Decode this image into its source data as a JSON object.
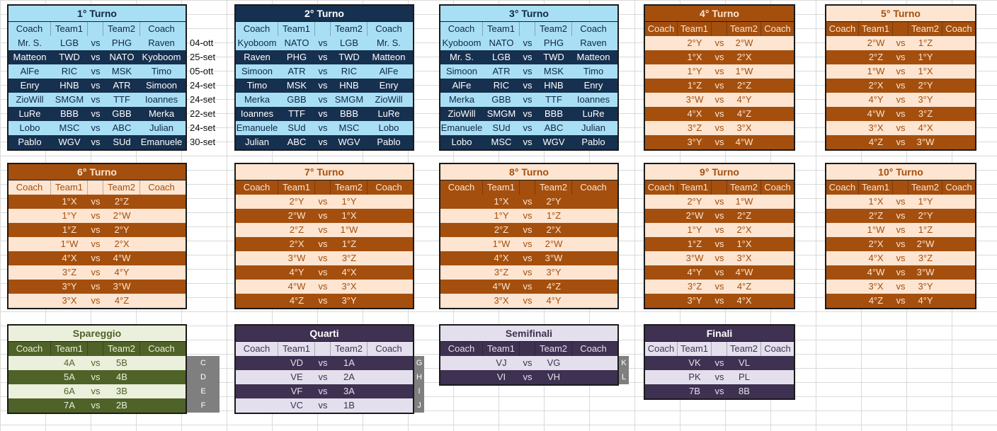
{
  "headers": {
    "coach": "Coach",
    "team1": "Team1",
    "team2": "Team2",
    "vs": "vs"
  },
  "turno1": {
    "title": "1° Turno",
    "rows": [
      [
        "Mr. S.",
        "LGB",
        "PHG",
        "Raven"
      ],
      [
        "Matteon",
        "TWD",
        "NATO",
        "Kyoboom"
      ],
      [
        "AlFe",
        "RIC",
        "MSK",
        "Timo"
      ],
      [
        "Enry",
        "HNB",
        "ATR",
        "Simoon"
      ],
      [
        "ZioWill",
        "SMGM",
        "TTF",
        "Ioannes"
      ],
      [
        "LuRe",
        "BBB",
        "GBB",
        "Merka"
      ],
      [
        "Lobo",
        "MSC",
        "ABC",
        "Julian"
      ],
      [
        "Pablo",
        "WGV",
        "SUd",
        "Emanuele"
      ]
    ],
    "dates": [
      "04-ott",
      "25-set",
      "05-ott",
      "24-set",
      "24-set",
      "22-set",
      "24-set",
      "30-set"
    ]
  },
  "turno2": {
    "title": "2° Turno",
    "rows": [
      [
        "Kyoboom",
        "NATO",
        "LGB",
        "Mr. S."
      ],
      [
        "Raven",
        "PHG",
        "TWD",
        "Matteon"
      ],
      [
        "Simoon",
        "ATR",
        "RIC",
        "AlFe"
      ],
      [
        "Timo",
        "MSK",
        "HNB",
        "Enry"
      ],
      [
        "Merka",
        "GBB",
        "SMGM",
        "ZioWill"
      ],
      [
        "Ioannes",
        "TTF",
        "BBB",
        "LuRe"
      ],
      [
        "Emanuele",
        "SUd",
        "MSC",
        "Lobo"
      ],
      [
        "Julian",
        "ABC",
        "WGV",
        "Pablo"
      ]
    ]
  },
  "turno3": {
    "title": "3° Turno",
    "rows": [
      [
        "Kyoboom",
        "NATO",
        "PHG",
        "Raven"
      ],
      [
        "Mr. S.",
        "LGB",
        "TWD",
        "Matteon"
      ],
      [
        "Simoon",
        "ATR",
        "MSK",
        "Timo"
      ],
      [
        "AlFe",
        "RIC",
        "HNB",
        "Enry"
      ],
      [
        "Merka",
        "GBB",
        "TTF",
        "Ioannes"
      ],
      [
        "ZioWill",
        "SMGM",
        "BBB",
        "LuRe"
      ],
      [
        "Emanuele",
        "SUd",
        "ABC",
        "Julian"
      ],
      [
        "Lobo",
        "MSC",
        "WGV",
        "Pablo"
      ]
    ]
  },
  "turno4": {
    "title": "4° Turno",
    "rows": [
      [
        "",
        "2°Y",
        "2°W",
        ""
      ],
      [
        "",
        "1°X",
        "2°X",
        ""
      ],
      [
        "",
        "1°Y",
        "1°W",
        ""
      ],
      [
        "",
        "1°Z",
        "2°Z",
        ""
      ],
      [
        "",
        "3°W",
        "4°Y",
        ""
      ],
      [
        "",
        "4°X",
        "4°Z",
        ""
      ],
      [
        "",
        "3°Z",
        "3°X",
        ""
      ],
      [
        "",
        "3°Y",
        "4°W",
        ""
      ]
    ]
  },
  "turno5": {
    "title": "5° Turno",
    "rows": [
      [
        "",
        "2°W",
        "1°Z",
        ""
      ],
      [
        "",
        "2°Z",
        "1°Y",
        ""
      ],
      [
        "",
        "1°W",
        "1°X",
        ""
      ],
      [
        "",
        "2°X",
        "2°Y",
        ""
      ],
      [
        "",
        "4°Y",
        "3°Y",
        ""
      ],
      [
        "",
        "4°W",
        "3°Z",
        ""
      ],
      [
        "",
        "3°X",
        "4°X",
        ""
      ],
      [
        "",
        "4°Z",
        "3°W",
        ""
      ]
    ]
  },
  "turno6": {
    "title": "6° Turno",
    "rows": [
      [
        "",
        "1°X",
        "2°Z",
        ""
      ],
      [
        "",
        "1°Y",
        "2°W",
        ""
      ],
      [
        "",
        "1°Z",
        "2°Y",
        ""
      ],
      [
        "",
        "1°W",
        "2°X",
        ""
      ],
      [
        "",
        "4°X",
        "4°W",
        ""
      ],
      [
        "",
        "3°Z",
        "4°Y",
        ""
      ],
      [
        "",
        "3°Y",
        "3°W",
        ""
      ],
      [
        "",
        "3°X",
        "4°Z",
        ""
      ]
    ]
  },
  "turno7": {
    "title": "7° Turno",
    "rows": [
      [
        "",
        "2°Y",
        "1°Y",
        ""
      ],
      [
        "",
        "2°W",
        "1°X",
        ""
      ],
      [
        "",
        "2°Z",
        "1°W",
        ""
      ],
      [
        "",
        "2°X",
        "1°Z",
        ""
      ],
      [
        "",
        "3°W",
        "3°Z",
        ""
      ],
      [
        "",
        "4°Y",
        "4°X",
        ""
      ],
      [
        "",
        "4°W",
        "3°X",
        ""
      ],
      [
        "",
        "4°Z",
        "3°Y",
        ""
      ]
    ]
  },
  "turno8": {
    "title": "8° Turno",
    "rows": [
      [
        "",
        "1°X",
        "2°Y",
        ""
      ],
      [
        "",
        "1°Y",
        "1°Z",
        ""
      ],
      [
        "",
        "2°Z",
        "2°X",
        ""
      ],
      [
        "",
        "1°W",
        "2°W",
        ""
      ],
      [
        "",
        "4°X",
        "3°W",
        ""
      ],
      [
        "",
        "3°Z",
        "3°Y",
        ""
      ],
      [
        "",
        "4°W",
        "4°Z",
        ""
      ],
      [
        "",
        "3°X",
        "4°Y",
        ""
      ]
    ]
  },
  "turno9": {
    "title": "9° Turno",
    "rows": [
      [
        "",
        "2°Y",
        "1°W",
        ""
      ],
      [
        "",
        "2°W",
        "2°Z",
        ""
      ],
      [
        "",
        "1°Y",
        "2°X",
        ""
      ],
      [
        "",
        "1°Z",
        "1°X",
        ""
      ],
      [
        "",
        "3°W",
        "3°X",
        ""
      ],
      [
        "",
        "4°Y",
        "4°W",
        ""
      ],
      [
        "",
        "3°Z",
        "4°Z",
        ""
      ],
      [
        "",
        "3°Y",
        "4°X",
        ""
      ]
    ]
  },
  "turno10": {
    "title": "10° Turno",
    "rows": [
      [
        "",
        "1°X",
        "1°Y",
        ""
      ],
      [
        "",
        "2°Z",
        "2°Y",
        ""
      ],
      [
        "",
        "1°W",
        "1°Z",
        ""
      ],
      [
        "",
        "2°X",
        "2°W",
        ""
      ],
      [
        "",
        "4°X",
        "3°Z",
        ""
      ],
      [
        "",
        "4°W",
        "3°W",
        ""
      ],
      [
        "",
        "3°X",
        "3°Y",
        ""
      ],
      [
        "",
        "4°Z",
        "4°Y",
        ""
      ]
    ]
  },
  "spareggio": {
    "title": "Spareggio",
    "rows": [
      [
        "",
        "4A",
        "5B",
        ""
      ],
      [
        "",
        "5A",
        "4B",
        ""
      ],
      [
        "",
        "6A",
        "3B",
        ""
      ],
      [
        "",
        "7A",
        "2B",
        ""
      ]
    ],
    "tags": [
      "C",
      "D",
      "E",
      "F"
    ]
  },
  "quarti": {
    "title": "Quarti",
    "rows": [
      [
        "",
        "VD",
        "1A",
        ""
      ],
      [
        "",
        "VE",
        "2A",
        ""
      ],
      [
        "",
        "VF",
        "3A",
        ""
      ],
      [
        "",
        "VC",
        "1B",
        ""
      ]
    ],
    "tags": [
      "G",
      "H",
      "I",
      "J"
    ]
  },
  "semifinali": {
    "title": "Semifinali",
    "rows": [
      [
        "",
        "VJ",
        "VG",
        ""
      ],
      [
        "",
        "VI",
        "VH",
        ""
      ]
    ],
    "tags": [
      "K",
      "L"
    ]
  },
  "finali": {
    "title": "Finali",
    "rows": [
      [
        "",
        "VK",
        "VL",
        ""
      ],
      [
        "",
        "PK",
        "PL",
        ""
      ],
      [
        "",
        "7B",
        "8B",
        ""
      ]
    ]
  }
}
